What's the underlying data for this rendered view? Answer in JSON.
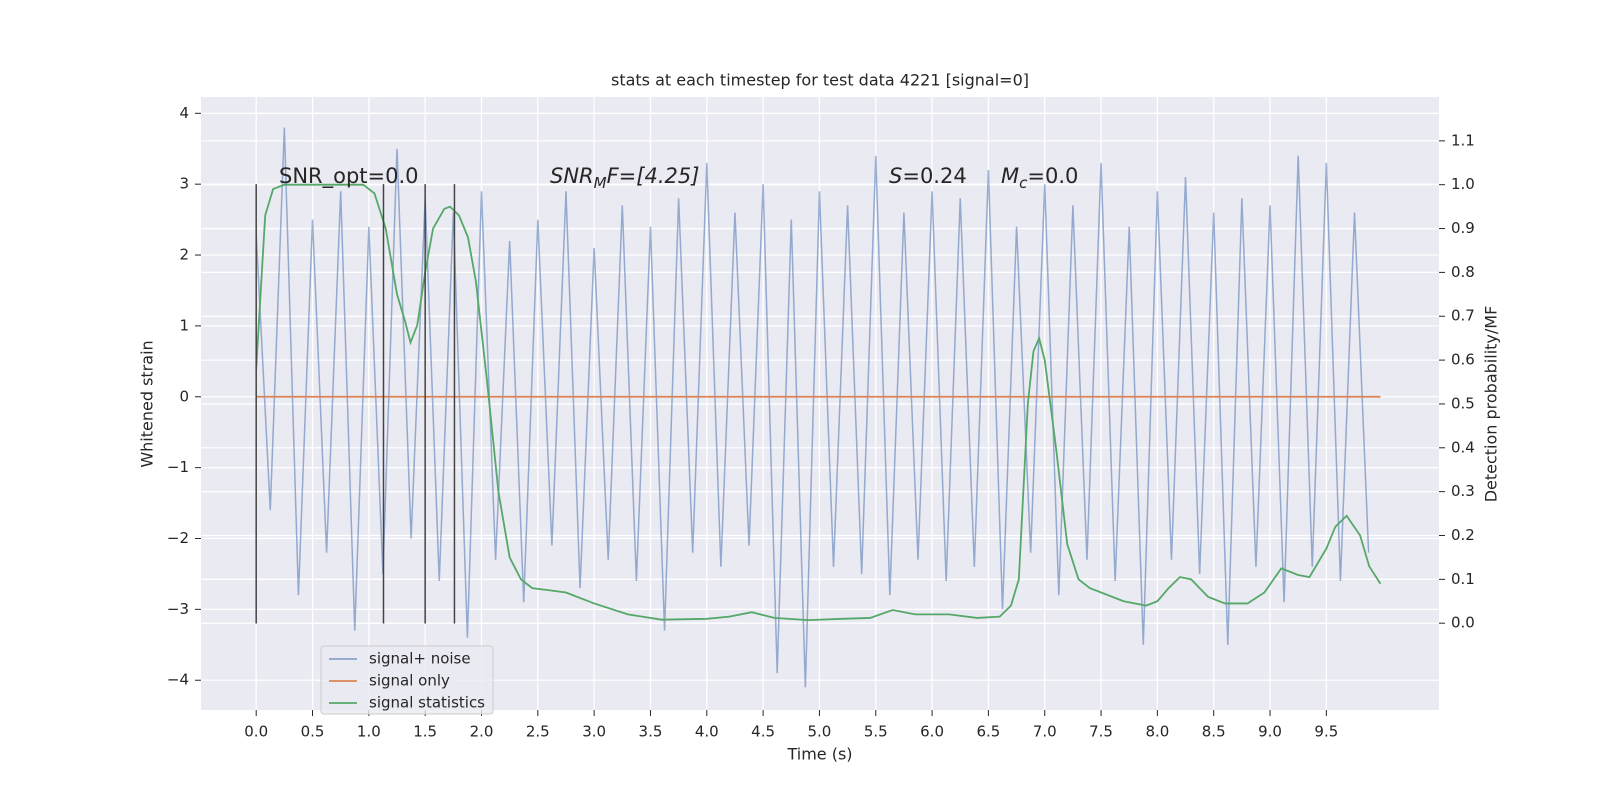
{
  "chart_data": {
    "type": "line",
    "title": "stats at each timestep for test data 4221 [signal=0]",
    "xlabel": "Time (s)",
    "ylabel": "Whitened strain",
    "y2label": "Detection probability/MF",
    "xlim": [
      -0.49,
      10.5
    ],
    "ylim": [
      -4.42,
      4.23
    ],
    "y2lim": [
      -0.198,
      1.2
    ],
    "xticks": [
      {
        "value": 0,
        "label": "0.0"
      },
      0.5,
      {
        "value": 1,
        "label": "1.0"
      },
      1.5,
      {
        "value": 2,
        "label": "2.0"
      },
      2.5,
      {
        "value": 3,
        "label": "3.0"
      },
      3.5,
      {
        "value": 4,
        "label": "4.0"
      },
      4.5,
      {
        "value": 5,
        "label": "5.0"
      },
      5.5,
      {
        "value": 6,
        "label": "6.0"
      },
      6.5,
      {
        "value": 7,
        "label": "7.0"
      },
      7.5,
      {
        "value": 8,
        "label": "8.0"
      },
      8.5,
      {
        "value": 9,
        "label": "9.0"
      },
      9.5
    ],
    "yticks": [
      {
        "value": -4,
        "label": "−4"
      },
      {
        "value": -3,
        "label": "−3"
      },
      {
        "value": -2,
        "label": "−2"
      },
      {
        "value": -1,
        "label": "−1"
      },
      0,
      1,
      2,
      3,
      4
    ],
    "y2ticks": [
      {
        "value": 0,
        "label": "0.0"
      },
      0.1,
      0.2,
      0.3,
      0.4,
      0.5,
      0.6,
      0.7,
      0.8,
      0.9,
      {
        "value": 1,
        "label": "1.0"
      },
      1.1
    ],
    "grid": true,
    "legend_loc": "lower left",
    "series": [
      {
        "name": "signal+ noise",
        "color": "#4c72b0",
        "x": [
          0,
          0.125,
          0.25,
          0.375,
          0.5,
          0.625,
          0.75,
          0.875,
          1,
          1.125,
          1.25,
          1.375,
          1.5,
          1.625,
          1.75,
          1.875,
          2,
          2.125,
          2.25,
          2.375,
          2.5,
          2.625,
          2.75,
          2.875,
          3,
          3.125,
          3.25,
          3.375,
          3.5,
          3.625,
          3.75,
          3.875,
          4,
          4.125,
          4.25,
          4.375,
          4.5,
          4.625,
          4.75,
          4.875,
          5,
          5.125,
          5.25,
          5.375,
          5.5,
          5.625,
          5.75,
          5.875,
          6,
          6.125,
          6.25,
          6.375,
          6.5,
          6.625,
          6.75,
          6.875,
          7,
          7.125,
          7.25,
          7.375,
          7.5,
          7.625,
          7.75,
          7.875,
          8,
          8.125,
          8.25,
          8.375,
          8.5,
          8.625,
          8.75,
          8.875,
          9,
          9.125,
          9.25,
          9.375,
          9.5,
          9.625,
          9.75,
          9.875
        ],
        "values": [
          2.3,
          -1.6,
          3.8,
          -2.8,
          2.5,
          -2.2,
          2.9,
          -3.3,
          2.4,
          -2.5,
          3.5,
          -2.0,
          2.8,
          -2.6,
          2.6,
          -3.4,
          2.9,
          -2.3,
          2.2,
          -2.9,
          2.5,
          -2.1,
          2.9,
          -2.7,
          2.1,
          -2.3,
          2.7,
          -2.6,
          2.4,
          -3.3,
          2.8,
          -2.2,
          3.3,
          -2.4,
          2.6,
          -2.1,
          3.0,
          -3.9,
          2.5,
          -4.1,
          2.9,
          -2.4,
          2.7,
          -2.5,
          3.4,
          -2.8,
          2.6,
          -2.3,
          2.9,
          -2.6,
          2.8,
          -2.4,
          3.2,
          -3.0,
          2.4,
          -2.2,
          3.0,
          -2.8,
          2.7,
          -2.3,
          3.3,
          -2.6,
          2.4,
          -3.5,
          2.9,
          -2.3,
          3.1,
          -2.5,
          2.6,
          -3.5,
          2.8,
          -2.4,
          2.7,
          -2.9,
          3.4,
          -2.4,
          3.3,
          -2.6,
          2.6,
          -2.2
        ]
      },
      {
        "name": "signal only",
        "color": "#dd8452",
        "x": [
          0,
          9.98
        ],
        "values": [
          0,
          0
        ]
      },
      {
        "name": "signal statistics",
        "color": "#55a868",
        "axis": "y2",
        "x": [
          0,
          0.05,
          0.08,
          0.15,
          0.25,
          0.5,
          0.75,
          0.95,
          1.05,
          1.15,
          1.25,
          1.32,
          1.37,
          1.43,
          1.5,
          1.57,
          1.67,
          1.72,
          1.8,
          1.88,
          1.95,
          2.05,
          2.15,
          2.25,
          2.35,
          2.45,
          2.6,
          2.75,
          3.0,
          3.3,
          3.6,
          4.0,
          4.2,
          4.4,
          4.6,
          4.9,
          5.2,
          5.45,
          5.65,
          5.85,
          6.15,
          6.4,
          6.6,
          6.7,
          6.77,
          6.85,
          6.9,
          6.95,
          7.0,
          7.1,
          7.2,
          7.3,
          7.4,
          7.7,
          7.9,
          8.0,
          8.1,
          8.2,
          8.3,
          8.45,
          8.6,
          8.8,
          8.95,
          9.1,
          9.25,
          9.35,
          9.5,
          9.58,
          9.68,
          9.8,
          9.88,
          9.98
        ],
        "values": [
          0.58,
          0.8,
          0.93,
          0.99,
          1.0,
          1.0,
          1.0,
          1.0,
          0.98,
          0.9,
          0.75,
          0.69,
          0.64,
          0.68,
          0.8,
          0.9,
          0.945,
          0.95,
          0.93,
          0.88,
          0.78,
          0.55,
          0.3,
          0.15,
          0.1,
          0.08,
          0.075,
          0.07,
          0.045,
          0.02,
          0.008,
          0.01,
          0.015,
          0.025,
          0.012,
          0.007,
          0.01,
          0.012,
          0.03,
          0.02,
          0.02,
          0.012,
          0.015,
          0.04,
          0.1,
          0.5,
          0.62,
          0.65,
          0.6,
          0.4,
          0.18,
          0.1,
          0.08,
          0.05,
          0.04,
          0.05,
          0.08,
          0.105,
          0.1,
          0.06,
          0.045,
          0.045,
          0.07,
          0.125,
          0.11,
          0.105,
          0.17,
          0.22,
          0.245,
          0.2,
          0.13,
          0.09
        ]
      }
    ],
    "vlines": {
      "x": [
        0,
        1.13,
        1.5,
        1.76
      ],
      "ymin": -3.2,
      "ymax": 3.0,
      "color": "#444444"
    },
    "annotations": [
      {
        "main": "SNR_opt=0.0"
      },
      {
        "main": "SNR",
        "sub": "M",
        "rest": "F=[4.25]"
      },
      {
        "main": "S",
        "rest": "=0.24"
      },
      {
        "main": "M",
        "sub": "c",
        "rest": "=0.0"
      }
    ]
  }
}
